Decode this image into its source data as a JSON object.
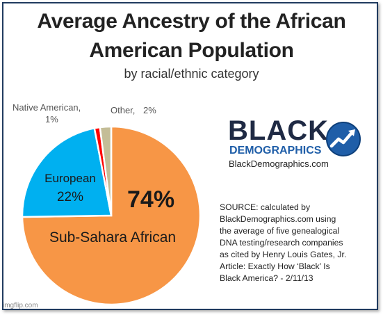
{
  "chart_data": {
    "type": "pie",
    "title": "Average Ancestry of the African American Population",
    "title_lines": [
      "Average Ancestry of the African",
      "American Population"
    ],
    "subtitle": "by racial/ethnic category",
    "slices": [
      {
        "name": "Sub-Sahara African",
        "value": 74,
        "label_name": "Sub-Sahara African",
        "label_value": "74%",
        "color": "#f79646"
      },
      {
        "name": "European",
        "value": 22,
        "label_name": "European",
        "label_value": "22%",
        "color": "#00b0f0"
      },
      {
        "name": "Native American",
        "value": 1,
        "label_name": "Native  American,",
        "label_value": "1%",
        "color": "#ff0000"
      },
      {
        "name": "Other",
        "value": 2,
        "label_name": "Other,",
        "label_value": "2%",
        "color": "#c4bd97"
      }
    ]
  },
  "logo": {
    "name_top": "BLACK",
    "name_bottom": "DEMOGRAPHICS",
    "site": "BlackDemographics.com",
    "accent": "#1f5ea8"
  },
  "source_text": "SOURCE:  calculated by\nBlackDemographics.com using\nthe average of five genealogical\nDNA testing/research companies\nas cited by Henry Louis Gates, Jr.\nArticle: Exactly How ‘Black’ Is\nBlack America? - 2/11/13",
  "watermark": "imgflip.com"
}
